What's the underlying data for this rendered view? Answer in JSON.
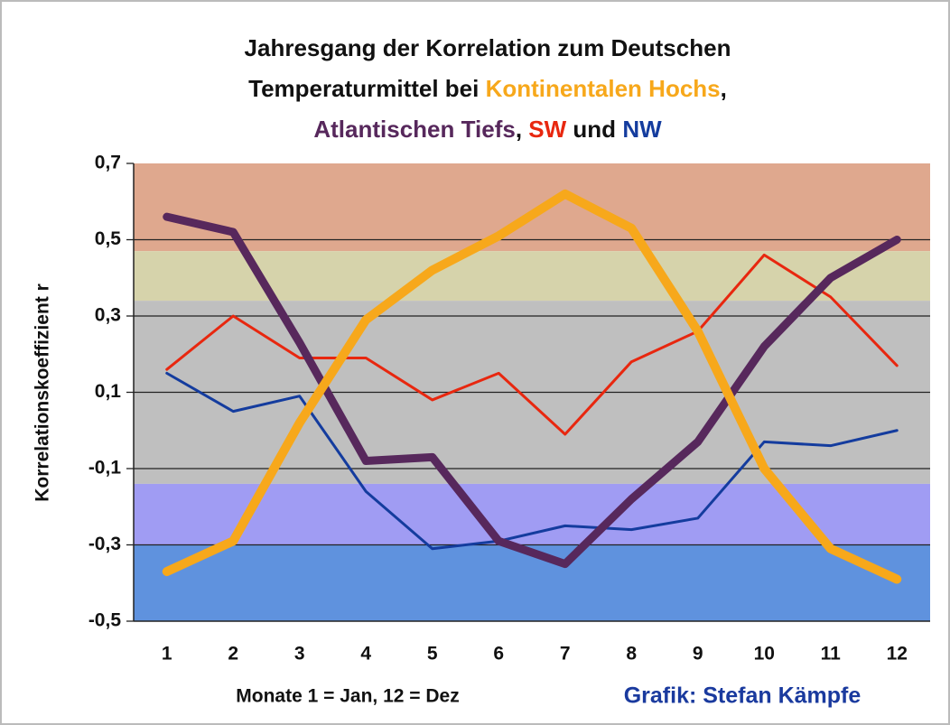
{
  "chart_data": {
    "type": "line",
    "title": "Jahresgang der Korrelation zum Deutschen",
    "title_line2": "Temperaturmittel  bei",
    "title_separators": [
      ",",
      ",",
      "und"
    ],
    "xlabel": "Monate 1 = Jan, 12 = Dez",
    "ylabel": "Korrelationskoeffizient r",
    "credit": "Grafik: Stefan Kämpfe",
    "x": [
      1,
      2,
      3,
      4,
      5,
      6,
      7,
      8,
      9,
      10,
      11,
      12
    ],
    "xlim": [
      0.5,
      12.5
    ],
    "ylim": [
      -0.5,
      0.7
    ],
    "yticks": [
      {
        "value": 0.7,
        "label": "0,7"
      },
      {
        "value": 0.5,
        "label": "0,5"
      },
      {
        "value": 0.3,
        "label": "0,3"
      },
      {
        "value": 0.1,
        "label": "0,1"
      },
      {
        "value": -0.1,
        "label": "-0,1"
      },
      {
        "value": -0.3,
        "label": "-0,3"
      },
      {
        "value": -0.5,
        "label": "-0,5"
      }
    ],
    "grid": true,
    "bands": [
      {
        "from": 0.47,
        "to": 0.7,
        "color": "#dfa88e"
      },
      {
        "from": 0.34,
        "to": 0.47,
        "color": "#d6d3ab"
      },
      {
        "from": -0.14,
        "to": 0.34,
        "color": "#bfbfbf"
      },
      {
        "from": -0.3,
        "to": -0.14,
        "color": "#a09cf3"
      },
      {
        "from": -0.5,
        "to": -0.3,
        "color": "#5f92de"
      }
    ],
    "series": [
      {
        "name": "Kontinentalen Hochs",
        "color": "#f7a81b",
        "width": 10,
        "values": [
          -0.37,
          -0.29,
          0.02,
          0.29,
          0.42,
          0.51,
          0.62,
          0.53,
          0.26,
          -0.1,
          -0.31,
          -0.39
        ]
      },
      {
        "name": "Atlantischen Tiefs",
        "color": "#57285c",
        "width": 9,
        "values": [
          0.56,
          0.52,
          0.23,
          -0.08,
          -0.07,
          -0.29,
          -0.35,
          -0.18,
          -0.03,
          0.22,
          0.4,
          0.5
        ]
      },
      {
        "name": "SW",
        "color": "#e8270f",
        "width": 3,
        "values": [
          0.16,
          0.3,
          0.19,
          0.19,
          0.08,
          0.15,
          -0.01,
          0.18,
          0.26,
          0.46,
          0.35,
          0.17
        ]
      },
      {
        "name": "NW",
        "color": "#143c9e",
        "width": 3,
        "values": [
          0.15,
          0.05,
          0.09,
          -0.16,
          -0.31,
          -0.29,
          -0.25,
          -0.26,
          -0.23,
          -0.03,
          -0.04,
          0.0
        ]
      }
    ]
  }
}
